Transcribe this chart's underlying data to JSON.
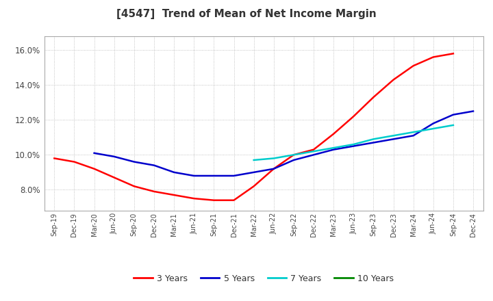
{
  "title": "[4547]  Trend of Mean of Net Income Margin",
  "title_fontsize": 11,
  "background_color": "#ffffff",
  "plot_bg_color": "#ffffff",
  "grid_color": "#aaaaaa",
  "ylim": [
    0.068,
    0.168
  ],
  "yticks": [
    0.08,
    0.1,
    0.12,
    0.14,
    0.16
  ],
  "x_labels": [
    "Sep-19",
    "Dec-19",
    "Mar-20",
    "Jun-20",
    "Sep-20",
    "Dec-20",
    "Mar-21",
    "Jun-21",
    "Sep-21",
    "Dec-21",
    "Mar-22",
    "Jun-22",
    "Sep-22",
    "Dec-22",
    "Mar-23",
    "Jun-23",
    "Sep-23",
    "Dec-23",
    "Mar-24",
    "Jun-24",
    "Sep-24",
    "Dec-24"
  ],
  "series": {
    "3 Years": {
      "color": "#ff0000",
      "linewidth": 1.8,
      "values": [
        0.098,
        0.096,
        0.092,
        0.087,
        0.082,
        0.079,
        0.077,
        0.075,
        0.074,
        0.074,
        0.082,
        0.092,
        0.1,
        0.103,
        0.112,
        0.122,
        0.133,
        0.143,
        0.151,
        0.156,
        0.158,
        null
      ]
    },
    "5 Years": {
      "color": "#0000cc",
      "linewidth": 1.8,
      "values": [
        null,
        null,
        0.101,
        0.099,
        0.096,
        0.094,
        0.09,
        0.088,
        0.088,
        0.088,
        0.09,
        0.092,
        0.097,
        0.1,
        0.103,
        0.105,
        0.107,
        0.109,
        0.111,
        0.118,
        0.123,
        0.125
      ]
    },
    "7 Years": {
      "color": "#00cccc",
      "linewidth": 1.8,
      "values": [
        null,
        null,
        null,
        null,
        null,
        null,
        null,
        null,
        null,
        null,
        0.097,
        0.098,
        0.1,
        0.102,
        0.104,
        0.106,
        0.109,
        0.111,
        0.113,
        0.115,
        0.117,
        null
      ]
    },
    "10 Years": {
      "color": "#008800",
      "linewidth": 1.8,
      "values": [
        null,
        null,
        null,
        null,
        null,
        null,
        null,
        null,
        null,
        null,
        null,
        null,
        null,
        null,
        null,
        null,
        null,
        null,
        null,
        null,
        null,
        null
      ]
    }
  },
  "legend": {
    "entries": [
      "3 Years",
      "5 Years",
      "7 Years",
      "10 Years"
    ],
    "colors": [
      "#ff0000",
      "#0000cc",
      "#00cccc",
      "#008800"
    ]
  }
}
